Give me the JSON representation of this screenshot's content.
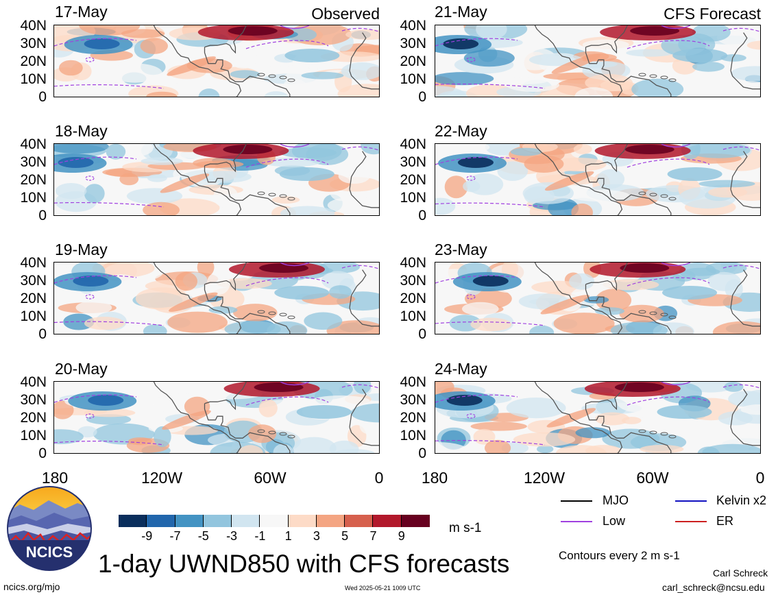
{
  "panels": [
    {
      "date": "17-May",
      "tag": "Observed",
      "col": 0,
      "row": 0
    },
    {
      "date": "18-May",
      "tag": "",
      "col": 0,
      "row": 1
    },
    {
      "date": "19-May",
      "tag": "",
      "col": 0,
      "row": 2
    },
    {
      "date": "20-May",
      "tag": "",
      "col": 0,
      "row": 3
    },
    {
      "date": "21-May",
      "tag": "CFS Forecast",
      "col": 1,
      "row": 0
    },
    {
      "date": "22-May",
      "tag": "",
      "col": 1,
      "row": 1
    },
    {
      "date": "23-May",
      "tag": "",
      "col": 1,
      "row": 2
    },
    {
      "date": "24-May",
      "tag": "",
      "col": 1,
      "row": 3
    }
  ],
  "lat_labels": [
    "40N",
    "30N",
    "20N",
    "10N",
    "0"
  ],
  "lon_labels": [
    "180",
    "120W",
    "60W",
    "0"
  ],
  "colorbar": {
    "colors": [
      "#0a2e5c",
      "#2166ac",
      "#4393c3",
      "#92c5de",
      "#d1e5f0",
      "#f7f7f7",
      "#fddbc7",
      "#f4a582",
      "#d6604d",
      "#b2182b",
      "#67001f"
    ],
    "ticks": [
      "-9",
      "-7",
      "-5",
      "-3",
      "-1",
      "1",
      "3",
      "5",
      "7",
      "9"
    ],
    "unit": "m s-1"
  },
  "legend": {
    "items": [
      {
        "label": "MJO",
        "color": "#000000"
      },
      {
        "label": "Kelvin x2",
        "color": "#1010c0"
      },
      {
        "label": "Low",
        "color": "#a040e0"
      },
      {
        "label": "ER",
        "color": "#cc2020"
      }
    ],
    "note": "Contours every 2 m s-1"
  },
  "title": "1-day UWND850 with CFS forecasts",
  "logo_text": "NCICS",
  "footer": {
    "url": "ncics.org/mjo",
    "timestamp": "Wed 2025-05-21 1009 UTC",
    "author": "Carl Schreck",
    "email": "carl_schreck@ncsu.edu"
  }
}
